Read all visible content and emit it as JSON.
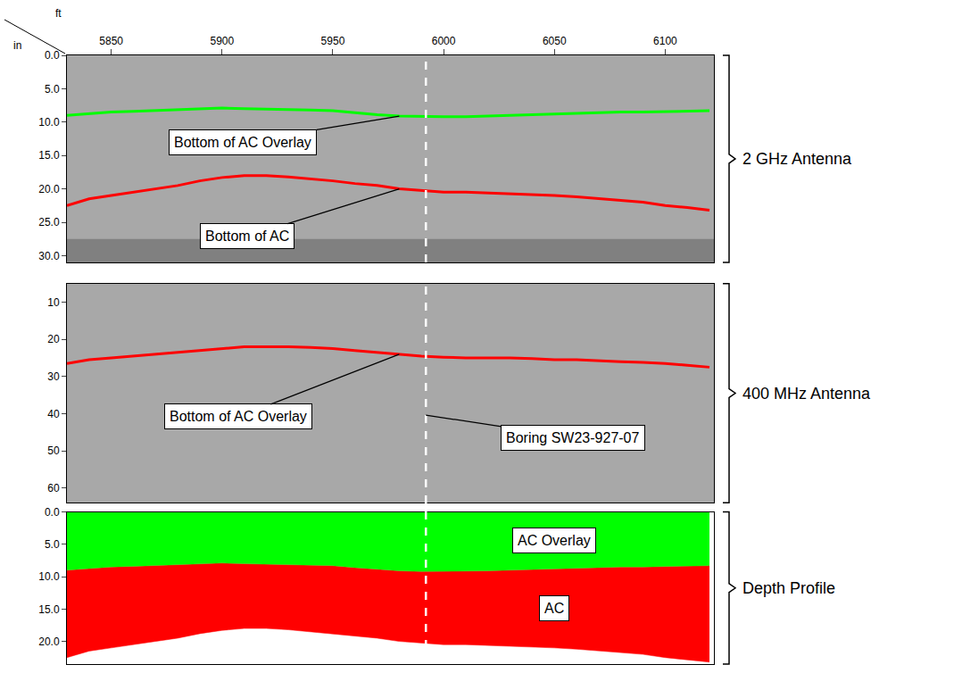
{
  "boring": {
    "x": 5992,
    "label": "Boring SW23-927-07"
  },
  "chart_data": [
    {
      "type": "line",
      "title": "2 GHz Antenna",
      "x_label": "ft",
      "y_label": "in",
      "x": [
        5830,
        5840,
        5850,
        5860,
        5870,
        5880,
        5890,
        5900,
        5910,
        5920,
        5930,
        5940,
        5950,
        5960,
        5970,
        5980,
        5990,
        6000,
        6010,
        6020,
        6030,
        6040,
        6050,
        6060,
        6070,
        6080,
        6090,
        6100,
        6110,
        6120
      ],
      "xlim": [
        5830,
        6122
      ],
      "xticks": [
        5850,
        5900,
        5950,
        6000,
        6050,
        6100
      ],
      "ylim": [
        31,
        0
      ],
      "yticks": [
        {
          "value": 0,
          "label": "0.0"
        },
        {
          "value": 5,
          "label": "5.0"
        },
        {
          "value": 10,
          "label": "10.0"
        },
        {
          "value": 15,
          "label": "15.0"
        },
        {
          "value": 20,
          "label": "20.0"
        },
        {
          "value": 25,
          "label": "25.0"
        },
        {
          "value": 30,
          "label": "30.0"
        }
      ],
      "no_data_below": 27.5,
      "series": [
        {
          "name": "Bottom of AC Overlay",
          "color": "#00ff00",
          "label_x": 5980,
          "values": [
            9.0,
            8.7,
            8.5,
            8.4,
            8.3,
            8.2,
            8.0,
            7.9,
            8.0,
            8.1,
            8.1,
            8.2,
            8.3,
            8.6,
            8.9,
            9.1,
            9.2,
            9.2,
            9.2,
            9.1,
            9.0,
            8.9,
            8.8,
            8.7,
            8.6,
            8.5,
            8.5,
            8.4,
            8.4,
            8.3
          ]
        },
        {
          "name": "Bottom of AC",
          "color": "#ff0000",
          "label_x": 5980,
          "values": [
            22.5,
            21.5,
            21.0,
            20.5,
            20.0,
            19.5,
            18.8,
            18.3,
            18.0,
            18.0,
            18.2,
            18.5,
            18.8,
            19.2,
            19.5,
            20.0,
            20.3,
            20.5,
            20.5,
            20.6,
            20.7,
            20.8,
            21.0,
            21.2,
            21.5,
            21.8,
            22.0,
            22.5,
            22.8,
            23.2
          ]
        }
      ]
    },
    {
      "type": "line",
      "title": "400 MHz Antenna",
      "tick_labels": "y",
      "x": [
        5830,
        5840,
        5850,
        5860,
        5870,
        5880,
        5890,
        5900,
        5910,
        5920,
        5930,
        5940,
        5950,
        5960,
        5970,
        5980,
        5990,
        6000,
        6010,
        6020,
        6030,
        6040,
        6050,
        6060,
        6070,
        6080,
        6090,
        6100,
        6110,
        6120
      ],
      "xlim": [
        5830,
        6122
      ],
      "ylim": [
        64,
        5
      ],
      "yticks": [
        10,
        20,
        30,
        40,
        50,
        60
      ],
      "series": [
        {
          "name": "Bottom of AC Overlay",
          "color": "#ff0000",
          "label_x": 5980,
          "values": [
            26.5,
            25.5,
            25.0,
            24.5,
            24.0,
            23.5,
            23.0,
            22.5,
            22.0,
            22.0,
            22.0,
            22.2,
            22.5,
            23.0,
            23.5,
            24.0,
            24.5,
            24.8,
            25.0,
            25.0,
            25.0,
            25.2,
            25.5,
            25.5,
            25.8,
            26.0,
            26.2,
            26.5,
            27.0,
            27.5
          ]
        }
      ]
    },
    {
      "type": "area",
      "title": "Depth Profile",
      "tick_labels": "y",
      "x": [
        5830,
        5840,
        5850,
        5860,
        5870,
        5880,
        5890,
        5900,
        5910,
        5920,
        5930,
        5940,
        5950,
        5960,
        5970,
        5980,
        5990,
        6000,
        6010,
        6020,
        6030,
        6040,
        6050,
        6060,
        6070,
        6080,
        6090,
        6100,
        6110,
        6120
      ],
      "xlim": [
        5830,
        6122
      ],
      "ylim": [
        23.5,
        0
      ],
      "yticks": [
        {
          "value": 0,
          "label": "0.0"
        },
        {
          "value": 5,
          "label": "5.0"
        },
        {
          "value": 10,
          "label": "10.0"
        },
        {
          "value": 15,
          "label": "15.0"
        },
        {
          "value": 20,
          "label": "20.0"
        }
      ],
      "series": [
        {
          "name": "AC Overlay",
          "color": "#00ff00",
          "label_x": 6050,
          "values": [
            9.0,
            8.7,
            8.5,
            8.4,
            8.3,
            8.2,
            8.0,
            7.9,
            8.0,
            8.1,
            8.1,
            8.2,
            8.3,
            8.6,
            8.9,
            9.1,
            9.2,
            9.2,
            9.2,
            9.1,
            9.0,
            8.9,
            8.8,
            8.7,
            8.6,
            8.5,
            8.5,
            8.4,
            8.4,
            8.3
          ]
        },
        {
          "name": "AC",
          "color": "#ff0000",
          "label_x": 6050,
          "values": [
            22.5,
            21.5,
            21.0,
            20.5,
            20.0,
            19.5,
            18.8,
            18.3,
            18.0,
            18.0,
            18.2,
            18.5,
            18.8,
            19.2,
            19.5,
            20.0,
            20.3,
            20.5,
            20.5,
            20.6,
            20.7,
            20.8,
            21.0,
            21.2,
            21.5,
            21.8,
            22.0,
            22.5,
            22.8,
            23.2
          ]
        }
      ]
    }
  ]
}
